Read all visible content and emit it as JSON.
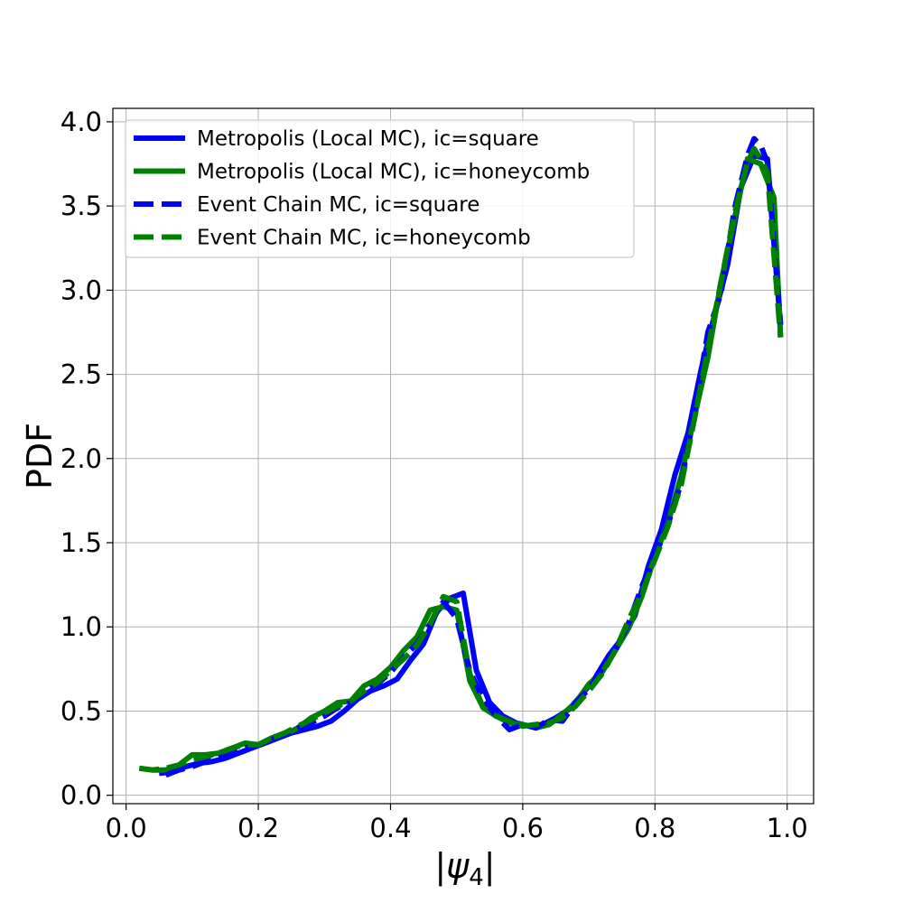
{
  "chart_data": {
    "type": "line",
    "title": "",
    "xlabel": "|ψ",
    "xlabel_sub": "4",
    "xlabel_close": "|",
    "ylabel": "PDF",
    "xlim": [
      -0.02,
      1.04
    ],
    "ylim": [
      -0.05,
      4.08
    ],
    "xticks": [
      0.0,
      0.2,
      0.4,
      0.6,
      0.8,
      1.0
    ],
    "xtick_labels": [
      "0.0",
      "0.2",
      "0.4",
      "0.6",
      "0.8",
      "1.0"
    ],
    "yticks": [
      0.0,
      0.5,
      1.0,
      1.5,
      2.0,
      2.5,
      3.0,
      3.5,
      4.0
    ],
    "ytick_labels": [
      "0.0",
      "0.5",
      "1.0",
      "1.5",
      "2.0",
      "2.5",
      "3.0",
      "3.5",
      "4.0"
    ],
    "grid": true,
    "legend_position": "top-left",
    "series": [
      {
        "name": "Metropolis (Local MC), ic=square",
        "color": "#0000ff",
        "dash": "solid",
        "points": [
          [
            0.05,
            0.13
          ],
          [
            0.07,
            0.14
          ],
          [
            0.09,
            0.17
          ],
          [
            0.11,
            0.19
          ],
          [
            0.13,
            0.2
          ],
          [
            0.15,
            0.22
          ],
          [
            0.17,
            0.25
          ],
          [
            0.19,
            0.28
          ],
          [
            0.21,
            0.31
          ],
          [
            0.23,
            0.34
          ],
          [
            0.25,
            0.37
          ],
          [
            0.27,
            0.39
          ],
          [
            0.29,
            0.41
          ],
          [
            0.31,
            0.44
          ],
          [
            0.33,
            0.5
          ],
          [
            0.35,
            0.57
          ],
          [
            0.37,
            0.62
          ],
          [
            0.39,
            0.65
          ],
          [
            0.41,
            0.69
          ],
          [
            0.43,
            0.8
          ],
          [
            0.45,
            0.9
          ],
          [
            0.47,
            1.09
          ],
          [
            0.49,
            1.17
          ],
          [
            0.51,
            1.2
          ],
          [
            0.53,
            0.74
          ],
          [
            0.55,
            0.55
          ],
          [
            0.57,
            0.47
          ],
          [
            0.59,
            0.43
          ],
          [
            0.61,
            0.41
          ],
          [
            0.63,
            0.42
          ],
          [
            0.65,
            0.46
          ],
          [
            0.67,
            0.51
          ],
          [
            0.69,
            0.6
          ],
          [
            0.71,
            0.7
          ],
          [
            0.73,
            0.83
          ],
          [
            0.75,
            0.93
          ],
          [
            0.77,
            1.07
          ],
          [
            0.79,
            1.36
          ],
          [
            0.81,
            1.58
          ],
          [
            0.83,
            1.9
          ],
          [
            0.85,
            2.15
          ],
          [
            0.87,
            2.53
          ],
          [
            0.89,
            2.85
          ],
          [
            0.91,
            3.15
          ],
          [
            0.93,
            3.61
          ],
          [
            0.95,
            3.8
          ],
          [
            0.97,
            3.78
          ],
          [
            0.99,
            2.79
          ]
        ]
      },
      {
        "name": "Metropolis (Local MC), ic=honeycomb",
        "color": "#008000",
        "dash": "solid",
        "points": [
          [
            0.02,
            0.16
          ],
          [
            0.04,
            0.15
          ],
          [
            0.06,
            0.15
          ],
          [
            0.08,
            0.18
          ],
          [
            0.1,
            0.24
          ],
          [
            0.12,
            0.24
          ],
          [
            0.14,
            0.25
          ],
          [
            0.16,
            0.28
          ],
          [
            0.18,
            0.31
          ],
          [
            0.2,
            0.3
          ],
          [
            0.22,
            0.34
          ],
          [
            0.24,
            0.36
          ],
          [
            0.26,
            0.4
          ],
          [
            0.28,
            0.46
          ],
          [
            0.3,
            0.5
          ],
          [
            0.32,
            0.55
          ],
          [
            0.34,
            0.56
          ],
          [
            0.36,
            0.65
          ],
          [
            0.38,
            0.69
          ],
          [
            0.4,
            0.76
          ],
          [
            0.42,
            0.86
          ],
          [
            0.44,
            0.94
          ],
          [
            0.46,
            1.1
          ],
          [
            0.48,
            1.12
          ],
          [
            0.5,
            1.1
          ],
          [
            0.52,
            0.68
          ],
          [
            0.54,
            0.52
          ],
          [
            0.56,
            0.47
          ],
          [
            0.58,
            0.43
          ],
          [
            0.6,
            0.42
          ],
          [
            0.62,
            0.4
          ],
          [
            0.64,
            0.42
          ],
          [
            0.66,
            0.48
          ],
          [
            0.68,
            0.55
          ],
          [
            0.7,
            0.66
          ],
          [
            0.72,
            0.73
          ],
          [
            0.74,
            0.86
          ],
          [
            0.76,
            0.99
          ],
          [
            0.78,
            1.18
          ],
          [
            0.8,
            1.42
          ],
          [
            0.82,
            1.62
          ],
          [
            0.84,
            1.9
          ],
          [
            0.86,
            2.25
          ],
          [
            0.88,
            2.6
          ],
          [
            0.9,
            3.05
          ],
          [
            0.92,
            3.42
          ],
          [
            0.94,
            3.78
          ],
          [
            0.96,
            3.75
          ],
          [
            0.98,
            3.55
          ],
          [
            0.99,
            2.72
          ]
        ]
      },
      {
        "name": "Event Chain MC, ic=square",
        "color": "#0000ff",
        "dash": "dashed",
        "points": [
          [
            0.06,
            0.12
          ],
          [
            0.08,
            0.15
          ],
          [
            0.1,
            0.17
          ],
          [
            0.12,
            0.2
          ],
          [
            0.14,
            0.22
          ],
          [
            0.16,
            0.25
          ],
          [
            0.18,
            0.28
          ],
          [
            0.2,
            0.3
          ],
          [
            0.22,
            0.33
          ],
          [
            0.24,
            0.36
          ],
          [
            0.26,
            0.4
          ],
          [
            0.28,
            0.43
          ],
          [
            0.3,
            0.47
          ],
          [
            0.32,
            0.52
          ],
          [
            0.34,
            0.55
          ],
          [
            0.36,
            0.61
          ],
          [
            0.38,
            0.66
          ],
          [
            0.4,
            0.73
          ],
          [
            0.42,
            0.82
          ],
          [
            0.44,
            0.9
          ],
          [
            0.46,
            1.02
          ],
          [
            0.48,
            1.15
          ],
          [
            0.5,
            1.05
          ],
          [
            0.52,
            0.74
          ],
          [
            0.54,
            0.57
          ],
          [
            0.56,
            0.47
          ],
          [
            0.58,
            0.39
          ],
          [
            0.6,
            0.42
          ],
          [
            0.62,
            0.4
          ],
          [
            0.64,
            0.45
          ],
          [
            0.66,
            0.44
          ],
          [
            0.68,
            0.55
          ],
          [
            0.7,
            0.63
          ],
          [
            0.72,
            0.75
          ],
          [
            0.74,
            0.86
          ],
          [
            0.76,
            1.02
          ],
          [
            0.78,
            1.24
          ],
          [
            0.8,
            1.42
          ],
          [
            0.82,
            1.61
          ],
          [
            0.84,
            1.86
          ],
          [
            0.86,
            2.28
          ],
          [
            0.88,
            2.75
          ],
          [
            0.9,
            2.98
          ],
          [
            0.92,
            3.48
          ],
          [
            0.94,
            3.8
          ],
          [
            0.95,
            3.9
          ],
          [
            0.96,
            3.86
          ],
          [
            0.97,
            3.76
          ],
          [
            0.99,
            2.8
          ]
        ]
      },
      {
        "name": "Event Chain MC, ic=honeycomb",
        "color": "#008000",
        "dash": "dashed",
        "points": [
          [
            0.02,
            0.16
          ],
          [
            0.04,
            0.15
          ],
          [
            0.06,
            0.16
          ],
          [
            0.08,
            0.18
          ],
          [
            0.1,
            0.21
          ],
          [
            0.12,
            0.23
          ],
          [
            0.14,
            0.25
          ],
          [
            0.16,
            0.28
          ],
          [
            0.18,
            0.3
          ],
          [
            0.2,
            0.3
          ],
          [
            0.22,
            0.34
          ],
          [
            0.24,
            0.37
          ],
          [
            0.26,
            0.41
          ],
          [
            0.28,
            0.45
          ],
          [
            0.3,
            0.49
          ],
          [
            0.32,
            0.53
          ],
          [
            0.34,
            0.56
          ],
          [
            0.36,
            0.62
          ],
          [
            0.38,
            0.67
          ],
          [
            0.4,
            0.74
          ],
          [
            0.42,
            0.81
          ],
          [
            0.44,
            0.89
          ],
          [
            0.46,
            1.02
          ],
          [
            0.48,
            1.18
          ],
          [
            0.5,
            1.15
          ],
          [
            0.52,
            0.72
          ],
          [
            0.54,
            0.52
          ],
          [
            0.56,
            0.47
          ],
          [
            0.58,
            0.44
          ],
          [
            0.6,
            0.41
          ],
          [
            0.62,
            0.42
          ],
          [
            0.64,
            0.43
          ],
          [
            0.66,
            0.46
          ],
          [
            0.68,
            0.53
          ],
          [
            0.7,
            0.62
          ],
          [
            0.72,
            0.72
          ],
          [
            0.74,
            0.86
          ],
          [
            0.76,
            1.04
          ],
          [
            0.78,
            1.2
          ],
          [
            0.8,
            1.4
          ],
          [
            0.82,
            1.6
          ],
          [
            0.84,
            1.85
          ],
          [
            0.86,
            2.24
          ],
          [
            0.88,
            2.65
          ],
          [
            0.9,
            3.05
          ],
          [
            0.92,
            3.45
          ],
          [
            0.94,
            3.76
          ],
          [
            0.95,
            3.84
          ],
          [
            0.96,
            3.78
          ],
          [
            0.97,
            3.7
          ],
          [
            0.99,
            2.72
          ]
        ]
      }
    ]
  }
}
